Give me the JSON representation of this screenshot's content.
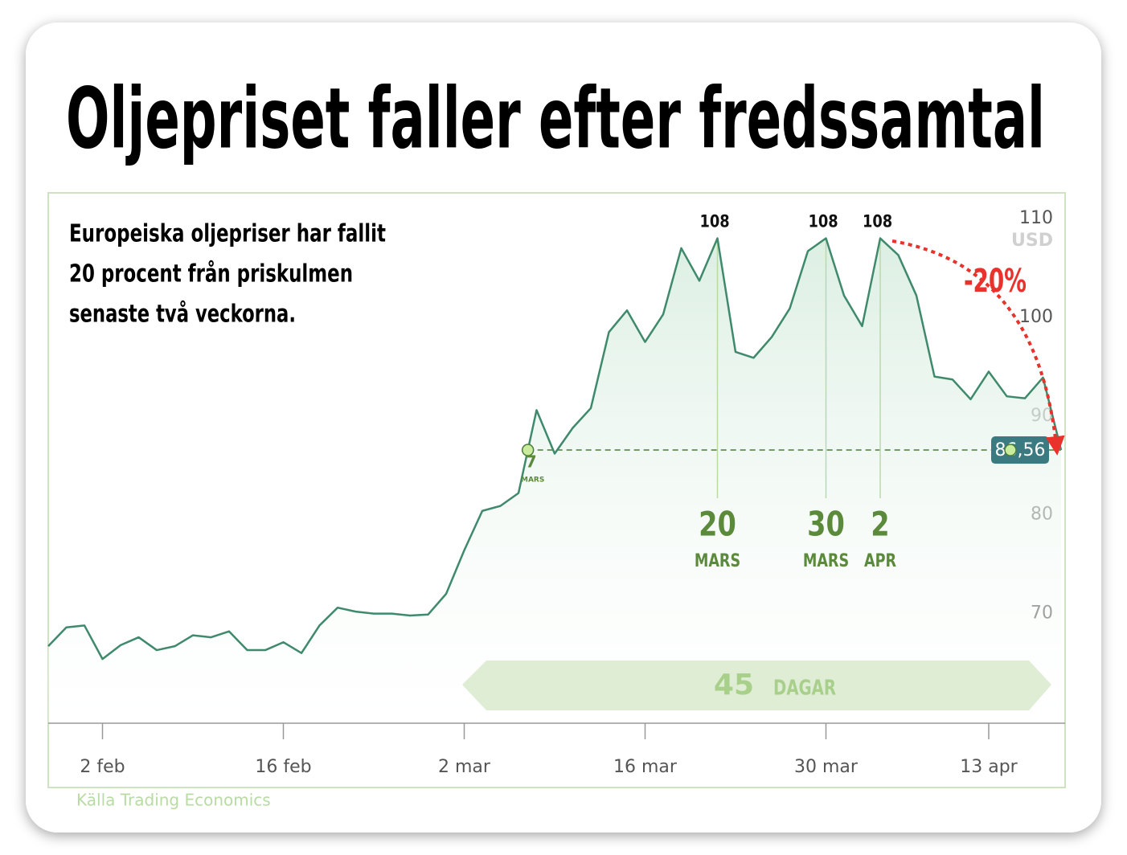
{
  "chart_data": {
    "type": "line",
    "title": "Oljepriset faller efter fredssamtal",
    "subtitle": [
      "Europeiska oljepriser har fallit",
      "20 procent från priskulmen",
      "senaste två veckorna."
    ],
    "categories": [
      null,
      null,
      null,
      "2 feb",
      null,
      null,
      null,
      null,
      null,
      null,
      null,
      null,
      null,
      "16 feb",
      null,
      null,
      null,
      null,
      null,
      null,
      null,
      null,
      null,
      "2 mar",
      null,
      null,
      null,
      null,
      null,
      null,
      null,
      null,
      null,
      "16 mar",
      null,
      null,
      null,
      null,
      null,
      null,
      null,
      null,
      null,
      "30 mar",
      null,
      null,
      null,
      null,
      null,
      null,
      null,
      null,
      "13 apr",
      null,
      null,
      null,
      null
    ],
    "values": [
      66.7,
      68.6,
      68.8,
      65.4,
      66.8,
      67.6,
      66.3,
      66.7,
      67.8,
      67.6,
      68.2,
      66.3,
      66.3,
      67.1,
      66.0,
      68.8,
      70.6,
      70.2,
      70.0,
      70.0,
      69.8,
      69.9,
      72.0,
      76.4,
      80.4,
      80.9,
      82.2,
      90.6,
      86.2,
      88.8,
      90.8,
      98.5,
      100.7,
      97.5,
      100.3,
      107.0,
      103.7,
      108,
      96.5,
      95.9,
      98.0,
      100.9,
      106.7,
      108,
      102.2,
      99.1,
      108,
      106.3,
      102.2,
      94.0,
      93.7,
      91.7,
      94.5,
      92.0,
      91.8,
      93.9,
      86.56
    ],
    "value_labels": [
      null,
      null,
      null,
      null,
      null,
      null,
      null,
      null,
      null,
      null,
      null,
      null,
      null,
      null,
      null,
      null,
      null,
      null,
      null,
      null,
      null,
      null,
      null,
      null,
      null,
      null,
      null,
      null,
      null,
      null,
      null,
      null,
      null,
      null,
      null,
      null,
      null,
      "108",
      null,
      null,
      null,
      null,
      null,
      "108",
      null,
      null,
      "108",
      null,
      null,
      null,
      null,
      null,
      null,
      null,
      null,
      null,
      "86,56"
    ],
    "point_dates": [
      null,
      null,
      null,
      null,
      null,
      null,
      null,
      null,
      null,
      null,
      null,
      null,
      null,
      null,
      null,
      null,
      null,
      null,
      null,
      null,
      null,
      null,
      null,
      null,
      null,
      null,
      null,
      null,
      null,
      null,
      null,
      null,
      null,
      null,
      null,
      null,
      null,
      {
        "day": "20",
        "month": "MARS"
      },
      null,
      null,
      null,
      null,
      null,
      {
        "day": "30",
        "month": "MARS"
      },
      null,
      null,
      {
        "day": "2",
        "month": "APR"
      },
      null,
      null,
      null,
      null,
      null,
      null,
      null,
      null,
      null,
      null
    ],
    "crossing": {
      "day": "7",
      "month": "MARS"
    },
    "color": "#3f8a6c",
    "ylim": [
      58.9,
      112.6
    ],
    "yticks": [
      70,
      80,
      90,
      100,
      110
    ],
    "y_unit": "USD",
    "change_label": "-20%",
    "span_label": {
      "number": "45",
      "unit": "DAGAR"
    },
    "source": "Källa Trading Economics"
  }
}
